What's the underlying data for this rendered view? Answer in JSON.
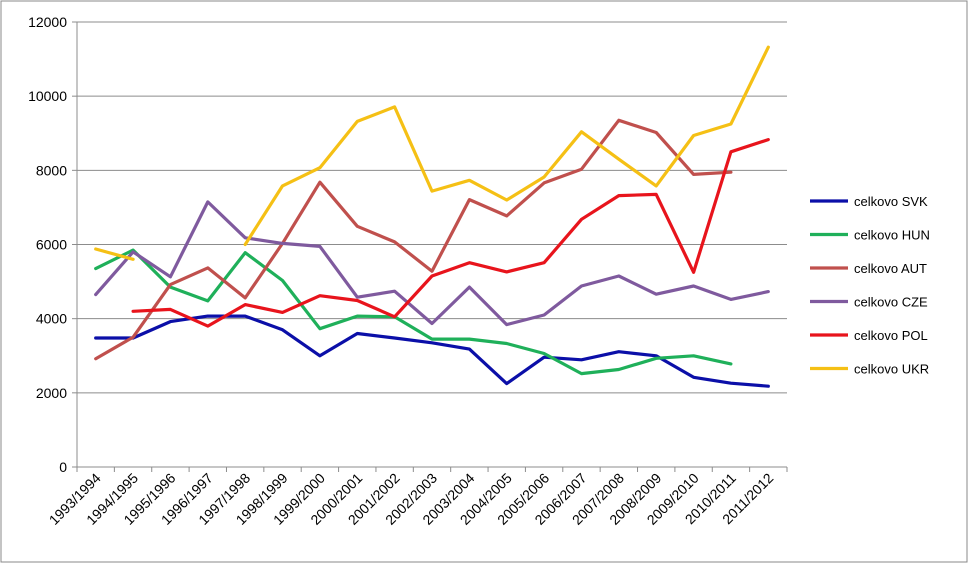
{
  "chart_data": {
    "type": "line",
    "title": "",
    "xlabel": "",
    "ylabel": "",
    "categories": [
      "1993/1994",
      "1994/1995",
      "1995/1996",
      "1996/1997",
      "1997/1998",
      "1998/1999",
      "1999/2000",
      "2000/2001",
      "2001/2002",
      "2002/2003",
      "2003/2004",
      "2004/2005",
      "2005/2006",
      "2006/2007",
      "2007/2008",
      "2008/2009",
      "2009/2010",
      "2010/2011",
      "2011/2012"
    ],
    "ylim": [
      0,
      12000
    ],
    "yticks": [
      0,
      2000,
      4000,
      6000,
      8000,
      10000,
      12000
    ],
    "grid": true,
    "legend_position": "right",
    "series": [
      {
        "name": "celkovo SVK",
        "color": "#0b0fa8",
        "values": [
          3480,
          3480,
          3920,
          4070,
          4070,
          3700,
          3000,
          3600,
          3480,
          3350,
          3180,
          2250,
          2960,
          2890,
          3110,
          3000,
          2420,
          2260,
          2180
        ]
      },
      {
        "name": "celkovo HUN",
        "color": "#1fb05a",
        "values": [
          5350,
          5850,
          4850,
          4480,
          5780,
          5030,
          3730,
          4070,
          4050,
          3450,
          3450,
          3330,
          3060,
          2520,
          2630,
          2930,
          3000,
          2780,
          null
        ]
      },
      {
        "name": "celkovo AUT",
        "color": "#c0504d",
        "values": [
          2920,
          3500,
          4920,
          5370,
          4560,
          6030,
          7680,
          6490,
          6070,
          5280,
          7210,
          6770,
          7660,
          8030,
          9350,
          9020,
          7890,
          7950,
          null
        ]
      },
      {
        "name": "celkovo CZE",
        "color": "#7f5a9e",
        "values": [
          4650,
          5800,
          5130,
          7150,
          6180,
          6030,
          5950,
          4580,
          4740,
          3870,
          4850,
          3840,
          4100,
          4880,
          5150,
          4660,
          4880,
          4520,
          4730
        ]
      },
      {
        "name": "celkovo POL",
        "color": "#e8141c",
        "values": [
          null,
          4200,
          4250,
          3800,
          4380,
          4170,
          4620,
          4490,
          4050,
          5150,
          5510,
          5260,
          5510,
          6680,
          7320,
          7350,
          5250,
          8500,
          8830
        ]
      },
      {
        "name": "celkovo UKR",
        "color": "#f5c015",
        "values": [
          5880,
          5600,
          null,
          null,
          6000,
          7580,
          8070,
          9320,
          9710,
          7440,
          7730,
          7200,
          7820,
          9040,
          8300,
          7580,
          8940,
          9250,
          11320
        ]
      }
    ]
  }
}
